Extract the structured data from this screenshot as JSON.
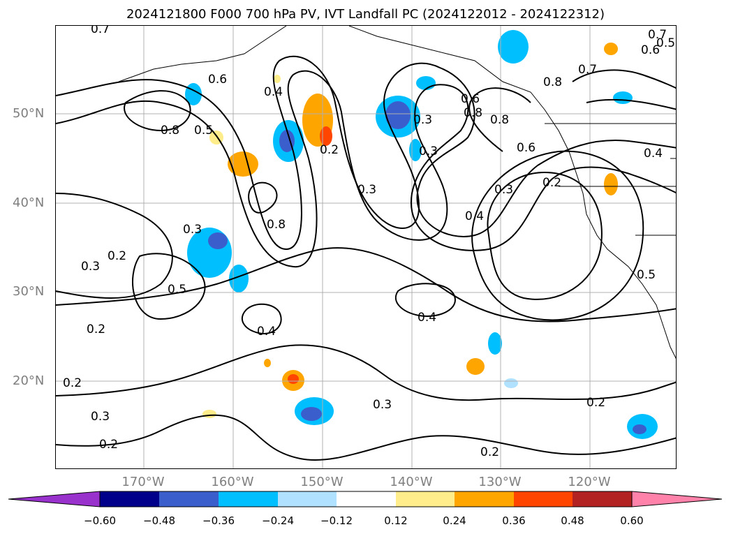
{
  "title": "2024121800 F000 700 hPa PV, IVT Landfall PC (2024122012 - 2024122312)",
  "lat_labels": [
    "50°N",
    "40°N",
    "30°N",
    "20°N"
  ],
  "lon_labels": [
    "170°W",
    "160°W",
    "150°W",
    "140°W",
    "130°W",
    "120°W"
  ],
  "colorbar": {
    "ticks": [
      "−0.60",
      "−0.48",
      "−0.36",
      "−0.24",
      "−0.12",
      "0.12",
      "0.24",
      "0.36",
      "0.48",
      "0.60"
    ],
    "colors": [
      "#9932CC",
      "#00008B",
      "#3A5FCD",
      "#00BFFF",
      "#B0E2FF",
      "#FFFFFF",
      "#FFEC8B",
      "#FFA500",
      "#FF4500",
      "#B22222",
      "#FF82AB"
    ]
  },
  "contour_labels": [
    "0.7",
    "0.6",
    "0.8",
    "0.5",
    "0.4",
    "0.2",
    "0.3",
    "0.8",
    "0.6",
    "0.8",
    "0.8",
    "0.3",
    "0.3",
    "0.3",
    "0.4",
    "0.6",
    "0.2",
    "0.7",
    "0.6",
    "0.5",
    "0.8",
    "0.7",
    "0.4",
    "0.3",
    "0.2",
    "0.3",
    "0.5",
    "0.2",
    "0.4",
    "0.4",
    "0.5",
    "0.2",
    "0.3",
    "0.3",
    "0.2",
    "0.2",
    "0.2"
  ]
}
